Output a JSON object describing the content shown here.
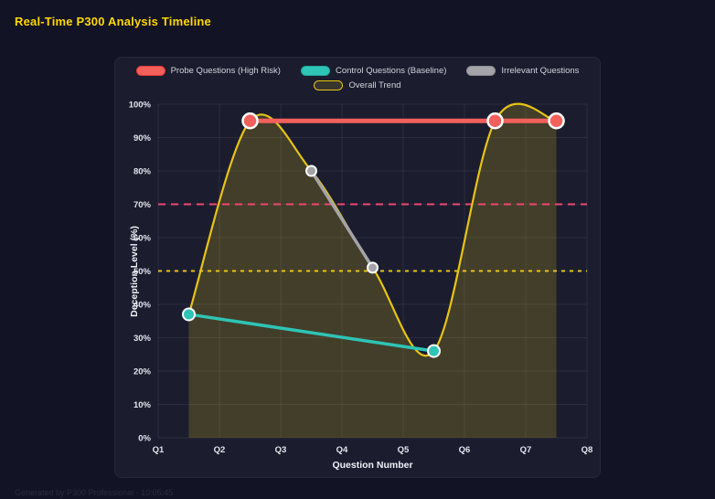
{
  "page": {
    "title": "Real-Time P300 Analysis Timeline",
    "title_color": "#ffd700",
    "background": "#121325",
    "panel_background": "#1b1d2f",
    "footer": "Generated by P300 Professional - 10:05:45"
  },
  "chart_data": {
    "type": "line",
    "title": "Real-Time P300 Analysis Timeline",
    "xlabel": "Question Number",
    "ylabel": "Deception Level (%)",
    "x_ticks": [
      "Q1",
      "Q2",
      "Q3",
      "Q4",
      "Q5",
      "Q6",
      "Q7",
      "Q8"
    ],
    "x_range": [
      1,
      8
    ],
    "ylim": [
      0,
      100
    ],
    "y_tick_step": 10,
    "y_tick_suffix": "%",
    "grid": true,
    "grid_color": "rgba(255,255,255,0.07)",
    "legend_position": "top",
    "legend_rows": [
      [
        0,
        1,
        2
      ],
      [
        3
      ]
    ],
    "series": [
      {
        "name": "Probe Questions (High Risk)",
        "color": "#f2605b",
        "swatch_fill": "#f2605b",
        "swatch_border": "#e23b33",
        "points": [
          [
            2.5,
            95
          ],
          [
            6.5,
            95
          ],
          [
            7.5,
            95
          ]
        ],
        "line_width": 5,
        "marker_radius": 8,
        "marker_stroke_width": 2.5,
        "z": 3
      },
      {
        "name": "Control Questions (Baseline)",
        "color": "#2ec4b6",
        "swatch_fill": "#2ec4b6",
        "swatch_border": "#1fa99c",
        "points": [
          [
            1.5,
            37
          ],
          [
            5.5,
            26
          ]
        ],
        "line_width": 3.5,
        "marker_radius": 6.5,
        "marker_stroke_width": 2,
        "z": 2
      },
      {
        "name": "Irrelevant Questions",
        "color": "#a3a3a8",
        "swatch_fill": "#a3a3a8",
        "swatch_border": "#8b8b90",
        "points": [
          [
            3.5,
            80
          ],
          [
            4.5,
            51
          ]
        ],
        "line_width": 3.5,
        "marker_radius": 5.5,
        "marker_stroke_width": 2,
        "z": 1
      },
      {
        "name": "Overall Trend",
        "color": "#e7c414",
        "swatch_fill": "rgba(231,196,20,0.15)",
        "swatch_border": "#e7c414",
        "points": [
          [
            1.5,
            37
          ],
          [
            2.5,
            95
          ],
          [
            3.5,
            80
          ],
          [
            4.5,
            51
          ],
          [
            5.5,
            26
          ],
          [
            6.5,
            95
          ],
          [
            7.5,
            95
          ]
        ],
        "line_width": 2.2,
        "smooth": true,
        "fill": "rgba(231,196,20,0.20)",
        "z": 0
      }
    ],
    "thresholds": [
      {
        "name": "high-risk-threshold",
        "y": 70,
        "color": "#ef476f",
        "dash": "8 6",
        "width": 2
      },
      {
        "name": "baseline-threshold",
        "y": 50,
        "color": "#e7c414",
        "dash": "4 5",
        "width": 2
      }
    ]
  }
}
